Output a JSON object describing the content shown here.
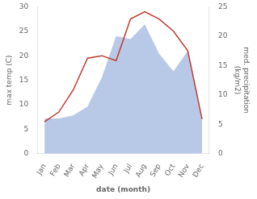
{
  "chart_data": {
    "type": "line",
    "categories": [
      "Jan",
      "Feb",
      "Mar",
      "Apr",
      "May",
      "Jun",
      "Jul",
      "Aug",
      "Sep",
      "Oct",
      "Nov",
      "Dec"
    ],
    "series": [
      {
        "type": "line",
        "color": "#c0392b",
        "values": [
          6.5,
          8.5,
          13.0,
          19.5,
          20.0,
          19.0,
          27.5,
          29.0,
          27.5,
          25.0,
          21.0,
          7.0
        ]
      },
      {
        "type": "area",
        "color": "#b8c9e8",
        "axis": "y2",
        "values": [
          6.0,
          6.0,
          6.5,
          8.0,
          13.0,
          20.0,
          19.5,
          22.0,
          17.0,
          14.0,
          17.5,
          5.5
        ]
      }
    ],
    "xlabel": "date (month)",
    "ylabel": "max temp (C)",
    "y2label": "med. precipitation\n(kg/m2)",
    "ylim": [
      0,
      30
    ],
    "yticks": [
      0,
      5,
      10,
      15,
      20,
      25,
      30
    ],
    "y2lim": [
      0,
      25
    ],
    "y2ticks": [
      0,
      5,
      10,
      15,
      20,
      25
    ],
    "grid": false
  }
}
